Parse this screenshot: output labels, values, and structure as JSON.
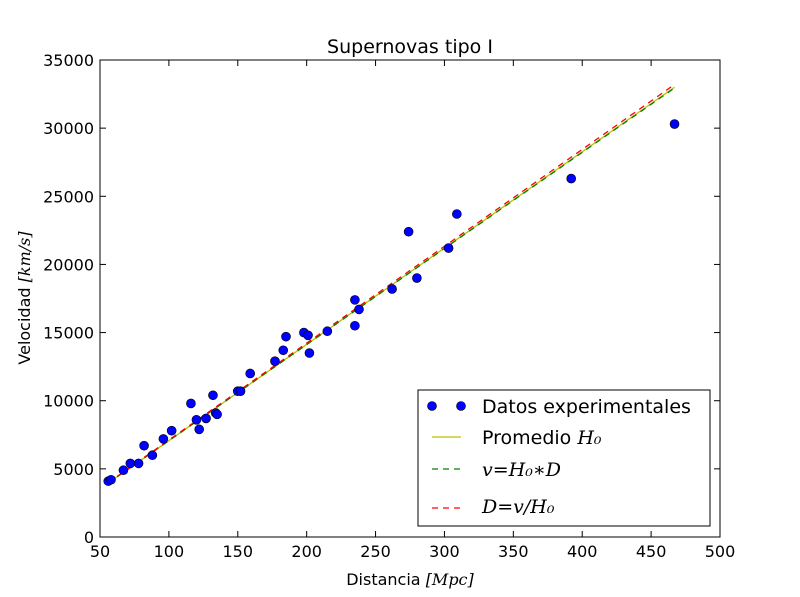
{
  "chart_data": {
    "type": "scatter",
    "title": "Supernovas tipo I",
    "xlabel": {
      "text": "Distancia",
      "math": "[Mpc]"
    },
    "ylabel": {
      "text": "Velocidad",
      "math": "[km/s]"
    },
    "xlim": [
      50,
      500
    ],
    "ylim": [
      0,
      35000
    ],
    "x_ticks": [
      50,
      100,
      150,
      200,
      250,
      300,
      350,
      400,
      450,
      500
    ],
    "y_ticks": [
      0,
      5000,
      10000,
      15000,
      20000,
      25000,
      30000,
      35000
    ],
    "grid": false,
    "legend_position": "bottom-right",
    "series": [
      {
        "name": "Datos experimentales",
        "kind": "scatter",
        "color": "#0000ff",
        "points": [
          [
            56,
            4100
          ],
          [
            58,
            4200
          ],
          [
            67,
            4900
          ],
          [
            72,
            5400
          ],
          [
            78,
            5400
          ],
          [
            82,
            6700
          ],
          [
            88,
            6000
          ],
          [
            96,
            7200
          ],
          [
            102,
            7800
          ],
          [
            116,
            9800
          ],
          [
            120,
            8600
          ],
          [
            122,
            7900
          ],
          [
            127,
            8700
          ],
          [
            132,
            10400
          ],
          [
            134,
            9100
          ],
          [
            135,
            9000
          ],
          [
            150,
            10700
          ],
          [
            152,
            10700
          ],
          [
            159,
            12000
          ],
          [
            177,
            12900
          ],
          [
            183,
            13700
          ],
          [
            185,
            14700
          ],
          [
            198,
            15000
          ],
          [
            201,
            14800
          ],
          [
            202,
            13500
          ],
          [
            215,
            15100
          ],
          [
            235,
            17400
          ],
          [
            235,
            15500
          ],
          [
            238,
            16700
          ],
          [
            262,
            18200
          ],
          [
            274,
            22400
          ],
          [
            280,
            19000
          ],
          [
            303,
            21200
          ],
          [
            309,
            23700
          ],
          [
            392,
            26300
          ],
          [
            467,
            30300
          ]
        ]
      },
      {
        "name": "Promedio",
        "name_math": "H₀",
        "kind": "line",
        "style": "solid",
        "color": "#bfbf00",
        "points": [
          [
            56,
            3960
          ],
          [
            467,
            33000
          ]
        ]
      },
      {
        "name_math": "v=H₀∗D",
        "kind": "line",
        "style": "dashed",
        "color": "#008000",
        "points": [
          [
            56,
            3960
          ],
          [
            467,
            32950
          ]
        ]
      },
      {
        "name_math": "D=v/H₀",
        "kind": "line",
        "style": "dashed",
        "color": "#ff0000",
        "points": [
          [
            56,
            3990
          ],
          [
            467,
            33200
          ]
        ]
      }
    ]
  }
}
